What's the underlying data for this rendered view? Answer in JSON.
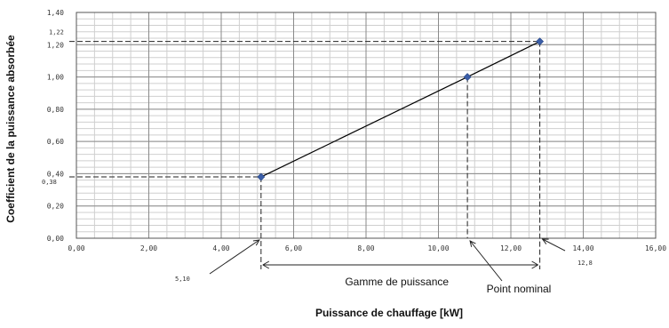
{
  "chart_data": {
    "type": "line",
    "xlabel": "Puissance de chauffage [kW]",
    "ylabel": "Coefficient de la puissance absorbée",
    "xlim": [
      0,
      16
    ],
    "ylim": [
      0,
      1.4
    ],
    "x_ticks": [
      {
        "value": 0,
        "label": "0,00"
      },
      {
        "value": 2,
        "label": "2,00"
      },
      {
        "value": 4,
        "label": "4,00"
      },
      {
        "value": 6,
        "label": "6,00"
      },
      {
        "value": 8,
        "label": "8,00"
      },
      {
        "value": 10,
        "label": "10,00"
      },
      {
        "value": 12,
        "label": "12,00"
      },
      {
        "value": 14,
        "label": "14,00"
      },
      {
        "value": 16,
        "label": "16,00"
      }
    ],
    "y_ticks": [
      {
        "value": 0,
        "label": "0,00"
      },
      {
        "value": 0.2,
        "label": "0,20"
      },
      {
        "value": 0.4,
        "label": "0,40"
      },
      {
        "value": 0.6,
        "label": "0,60"
      },
      {
        "value": 0.8,
        "label": "0,80"
      },
      {
        "value": 1.0,
        "label": "1,00"
      },
      {
        "value": 1.2,
        "label": "1,20"
      },
      {
        "value": 1.4,
        "label": "1,40"
      }
    ],
    "grid": {
      "major": true,
      "minor_x_step": 0.5,
      "minor_y_step": 0.04
    },
    "series": [
      {
        "points": [
          [
            5.1,
            0.38
          ],
          [
            10.8,
            1.0
          ],
          [
            12.8,
            1.22
          ]
        ],
        "color": "#000000",
        "marker_color": "#3b5ea8"
      }
    ],
    "annotations": {
      "min_x_label": "5,10",
      "min_y_label": "0,38",
      "max_x_label": "12,8",
      "max_y_label": "1,22",
      "range_label": "Gamme de puissance",
      "nominal_label": "Point nominal"
    }
  }
}
